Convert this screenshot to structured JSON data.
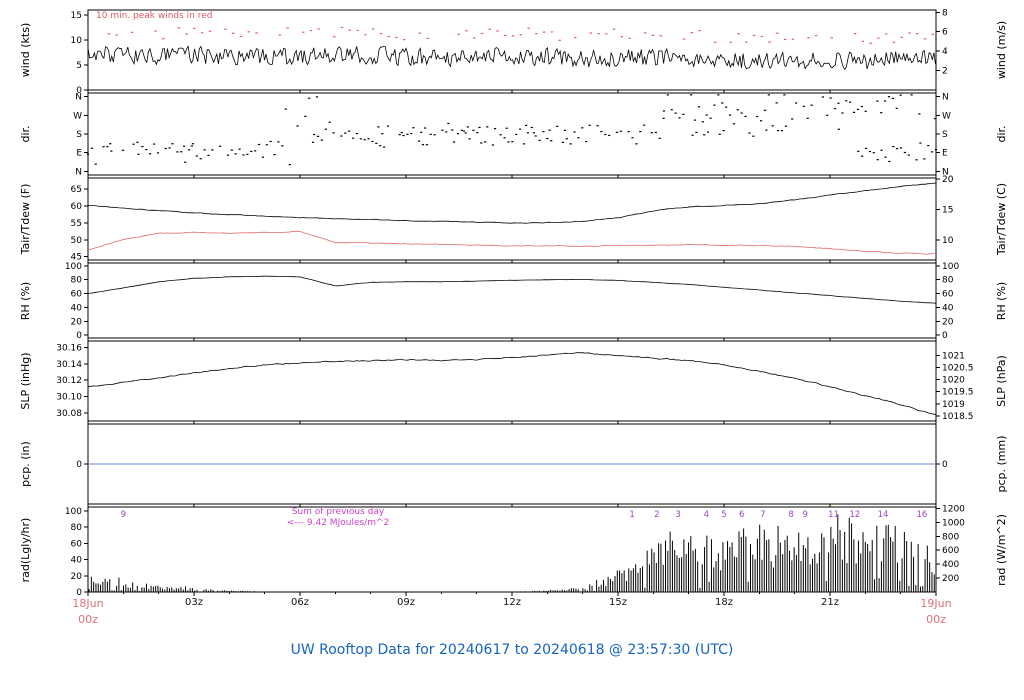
{
  "chart_data": {
    "type": "line",
    "title": "UW Rooftop Data for 20240617  to  20240618 @ 23:57:30  (UTC)",
    "title_color": "#1565c0",
    "x": {
      "range_hours": [
        0,
        24
      ],
      "ticks": [
        {
          "h": 3,
          "t": "03z"
        },
        {
          "h": 6,
          "t": "06z"
        },
        {
          "h": 9,
          "t": "09z"
        },
        {
          "h": 12,
          "t": "12z"
        },
        {
          "h": 15,
          "t": "15z"
        },
        {
          "h": 18,
          "t": "18z"
        },
        {
          "h": 21,
          "t": "21z"
        }
      ],
      "start_label": [
        "18Jun",
        "00z"
      ],
      "end_label": [
        "19Jun",
        "00z"
      ],
      "end_label_color": "#e0707a"
    },
    "panels": [
      {
        "id": "wind",
        "ylabel_left": "wind (kts)",
        "ylabel_right": "wind (m/s)",
        "yrange": [
          0,
          16
        ],
        "left_ticks": [
          {
            "v": 0,
            "t": "0"
          },
          {
            "v": 5,
            "t": "5"
          },
          {
            "v": 10,
            "t": "10"
          },
          {
            "v": 15,
            "t": "15"
          }
        ],
        "right_ticks": [
          {
            "v": 3.89,
            "t": "2"
          },
          {
            "v": 7.78,
            "t": "4"
          },
          {
            "v": 11.66,
            "t": "6"
          },
          {
            "v": 15.55,
            "t": "8"
          }
        ],
        "note": "10 min. peak winds in red",
        "note_color": "#e05a64",
        "series": [
          {
            "name": "wind-speed",
            "type": "noisy-line",
            "color": "#000000",
            "noise": 2.0,
            "smooth": 0.15,
            "step": 0.045,
            "hourly": [
              7.5,
              7.0,
              6.8,
              7.0,
              6.6,
              6.4,
              6.8,
              7.2,
              7.0,
              6.6,
              6.4,
              6.8,
              7.0,
              6.6,
              6.2,
              6.4,
              6.6,
              6.2,
              5.8,
              6.0,
              5.6,
              6.0,
              5.8,
              6.2,
              6.5
            ]
          },
          {
            "name": "peak-winds",
            "type": "peak-dots",
            "color": "#e05a64",
            "base_series": 0,
            "offset": 3.4,
            "jitter": 2.4,
            "step": 0.22
          }
        ]
      },
      {
        "id": "dir",
        "ylabel_left": "dir.",
        "ylabel_right": "dir.",
        "yrange": [
          -0.2,
          4.2
        ],
        "left_ticks": [
          {
            "v": 4,
            "t": "N"
          },
          {
            "v": 3,
            "t": "W"
          },
          {
            "v": 2,
            "t": "S"
          },
          {
            "v": 1,
            "t": "E"
          },
          {
            "v": 0,
            "t": "N"
          }
        ],
        "right_ticks": [
          {
            "v": 4,
            "t": "N"
          },
          {
            "v": 3,
            "t": "W"
          },
          {
            "v": 2,
            "t": "S"
          },
          {
            "v": 1,
            "t": "E"
          },
          {
            "v": 0,
            "t": "N"
          }
        ],
        "series": [
          {
            "name": "wind-direction",
            "type": "dir-scatter",
            "color": "#000000",
            "clusters": [
              {
                "h0": 0.0,
                "h1": 5.6,
                "c": 1.05,
                "s": 0.28,
                "p": 0.75
              },
              {
                "h0": 0.3,
                "h1": 3.2,
                "c": 1.45,
                "s": 0.12,
                "p": 0.3
              },
              {
                "h0": 5.6,
                "h1": 6.6,
                "c": 2.6,
                "s": 0.9,
                "p": 0.9
              },
              {
                "h0": 6.4,
                "h1": 14.2,
                "c": 1.95,
                "s": 0.28,
                "p": 0.85
              },
              {
                "h0": 8.0,
                "h1": 13.5,
                "c": 2.25,
                "s": 0.12,
                "p": 0.35
              },
              {
                "h0": 14.2,
                "h1": 16.3,
                "c": 2.15,
                "s": 0.4,
                "p": 0.8
              },
              {
                "h0": 16.3,
                "h1": 21.3,
                "c": 3.1,
                "s": 0.5,
                "p": 0.85
              },
              {
                "h0": 17.0,
                "h1": 20.0,
                "c": 2.4,
                "s": 0.25,
                "p": 0.3
              },
              {
                "h0": 20.8,
                "h1": 23.0,
                "c": 3.75,
                "s": 0.25,
                "p": 0.8
              },
              {
                "h0": 21.8,
                "h1": 24.0,
                "c": 1.1,
                "s": 0.3,
                "p": 0.8
              },
              {
                "h0": 23.2,
                "h1": 24.0,
                "c": 3.6,
                "s": 0.3,
                "p": 0.5
              }
            ]
          }
        ]
      },
      {
        "id": "tair",
        "ylabel_left": "Tair/Tdew (F)",
        "ylabel_right": "Tair/Tdew (C)",
        "yrange": [
          44,
          68.3
        ],
        "left_ticks": [
          {
            "v": 45,
            "t": "45"
          },
          {
            "v": 50,
            "t": "50"
          },
          {
            "v": 55,
            "t": "55"
          },
          {
            "v": 60,
            "t": "60"
          },
          {
            "v": 65,
            "t": "65"
          }
        ],
        "right_ticks": [
          {
            "v": 50,
            "t": "10"
          },
          {
            "v": 59,
            "t": "15"
          },
          {
            "v": 68,
            "t": "20"
          }
        ],
        "series": [
          {
            "name": "air-temperature",
            "type": "noisy-line",
            "color": "#000000",
            "noise": 0.22,
            "smooth": 0.6,
            "step": 0.08,
            "hourly": [
              60.2,
              59.3,
              58.6,
              58.0,
              57.4,
              57.0,
              56.6,
              56.3,
              56.0,
              55.7,
              55.4,
              55.2,
              55.0,
              55.1,
              55.5,
              56.5,
              58.5,
              59.8,
              60.2,
              60.6,
              61.8,
              63.2,
              64.5,
              65.8,
              66.8
            ]
          },
          {
            "name": "dew-point",
            "type": "noisy-line",
            "color": "#e06a6a",
            "noise": 0.25,
            "smooth": 0.6,
            "step": 0.08,
            "hourly": [
              47.0,
              50.0,
              51.9,
              52.2,
              51.9,
              52.2,
              52.4,
              49.2,
              49.0,
              48.8,
              48.6,
              48.4,
              48.2,
              48.2,
              48.1,
              48.3,
              48.4,
              48.5,
              48.4,
              48.3,
              48.0,
              47.4,
              46.6,
              46.0,
              45.8
            ]
          }
        ]
      },
      {
        "id": "rh",
        "ylabel_left": "RH (%)",
        "ylabel_right": "RH (%)",
        "yrange": [
          -4,
          104
        ],
        "left_ticks": [
          {
            "v": 0,
            "t": "0"
          },
          {
            "v": 20,
            "t": "20"
          },
          {
            "v": 40,
            "t": "40"
          },
          {
            "v": 60,
            "t": "60"
          },
          {
            "v": 80,
            "t": "80"
          },
          {
            "v": 100,
            "t": "100"
          }
        ],
        "right_ticks": [
          {
            "v": 0,
            "t": "0"
          },
          {
            "v": 20,
            "t": "20"
          },
          {
            "v": 40,
            "t": "40"
          },
          {
            "v": 60,
            "t": "60"
          },
          {
            "v": 80,
            "t": "80"
          },
          {
            "v": 100,
            "t": "100"
          }
        ],
        "series": [
          {
            "name": "relative-humidity",
            "type": "noisy-line",
            "color": "#000000",
            "noise": 0.5,
            "smooth": 0.6,
            "step": 0.08,
            "hourly": [
              60,
              68,
              77,
              82,
              84,
              85,
              84,
              71,
              76,
              77,
              77,
              78,
              79,
              80,
              80,
              79,
              76,
              73,
              69,
              65,
              61,
              57,
              53,
              49,
              46
            ]
          }
        ]
      },
      {
        "id": "slp",
        "ylabel_left": "SLP (inHg)",
        "ylabel_right": "SLP (hPa)",
        "yrange": [
          30.07,
          30.168
        ],
        "left_ticks": [
          {
            "v": 30.08,
            "t": "30.08"
          },
          {
            "v": 30.1,
            "t": "30.10"
          },
          {
            "v": 30.12,
            "t": "30.12"
          },
          {
            "v": 30.14,
            "t": "30.14"
          },
          {
            "v": 30.16,
            "t": "30.16"
          }
        ],
        "right_ticks": [
          {
            "v": 30.0763,
            "t": "1018.5"
          },
          {
            "v": 30.0911,
            "t": "1019"
          },
          {
            "v": 30.1059,
            "t": "1019.5"
          },
          {
            "v": 30.1206,
            "t": "1020"
          },
          {
            "v": 30.1354,
            "t": "1020.5"
          },
          {
            "v": 30.1502,
            "t": "1021"
          }
        ],
        "series": [
          {
            "name": "sea-level-pressure",
            "type": "noisy-line",
            "color": "#000000",
            "noise": 0.0012,
            "smooth": 0.5,
            "step": 0.08,
            "hourly": [
              30.112,
              30.117,
              30.123,
              30.129,
              30.134,
              30.139,
              30.141,
              30.143,
              30.144,
              30.145,
              30.144,
              30.145,
              30.148,
              30.151,
              30.154,
              30.15,
              30.147,
              30.144,
              30.139,
              30.131,
              30.122,
              30.112,
              30.101,
              30.09,
              30.077
            ]
          }
        ]
      },
      {
        "id": "pcp",
        "ylabel_left": "pcp. (in)",
        "ylabel_right": "pcp. (mm)",
        "yrange": [
          -1,
          1
        ],
        "left_ticks": [
          {
            "v": 0,
            "t": "0"
          }
        ],
        "right_ticks": [
          {
            "v": 0,
            "t": "0"
          }
        ],
        "series": [
          {
            "name": "precipitation",
            "type": "flat-line",
            "color": "#6688cc",
            "value": 0
          }
        ]
      },
      {
        "id": "rad",
        "ylabel_left": "rad(Lgly/hr)",
        "ylabel_right": "rad (W/m^2)",
        "yrange": [
          0,
          105
        ],
        "left_ticks": [
          {
            "v": 0,
            "t": "0"
          },
          {
            "v": 20,
            "t": "20"
          },
          {
            "v": 40,
            "t": "40"
          },
          {
            "v": 60,
            "t": "60"
          },
          {
            "v": 80,
            "t": "80"
          },
          {
            "v": 100,
            "t": "100"
          }
        ],
        "right_ticks": [
          {
            "v": 17.2,
            "t": "200"
          },
          {
            "v": 34.4,
            "t": "400"
          },
          {
            "v": 51.6,
            "t": "600"
          },
          {
            "v": 68.8,
            "t": "800"
          },
          {
            "v": 86.0,
            "t": "1000"
          },
          {
            "v": 103.2,
            "t": "1200"
          }
        ],
        "hour_marks_color": "#9944cc",
        "hour_marks": [
          {
            "h": 1.0,
            "t": "9"
          },
          {
            "h": 15.4,
            "t": "1"
          },
          {
            "h": 16.1,
            "t": "2"
          },
          {
            "h": 16.7,
            "t": "3"
          },
          {
            "h": 17.5,
            "t": "4"
          },
          {
            "h": 18.0,
            "t": "5"
          },
          {
            "h": 18.5,
            "t": "6"
          },
          {
            "h": 19.1,
            "t": "7"
          },
          {
            "h": 19.9,
            "t": "8"
          },
          {
            "h": 20.3,
            "t": "9"
          },
          {
            "h": 21.1,
            "t": "11"
          },
          {
            "h": 21.7,
            "t": "12"
          },
          {
            "h": 22.5,
            "t": "14"
          },
          {
            "h": 23.6,
            "t": "16"
          }
        ],
        "sum_label": [
          "Sum of previous day",
          "<--- 9.42 MJoules/m^2"
        ],
        "sum_label_color": "#cc44cc",
        "series": [
          {
            "name": "solar-radiation",
            "type": "rad-bars",
            "color": "#000000",
            "step": 0.065,
            "hourly": [
              20,
              15,
              9,
              5,
              2,
              1,
              0,
              0,
              0,
              0,
              0,
              0,
              0.5,
              2,
              6,
              28,
              58,
              75,
              68,
              85,
              80,
              98,
              92,
              80,
              58
            ]
          }
        ]
      }
    ]
  }
}
